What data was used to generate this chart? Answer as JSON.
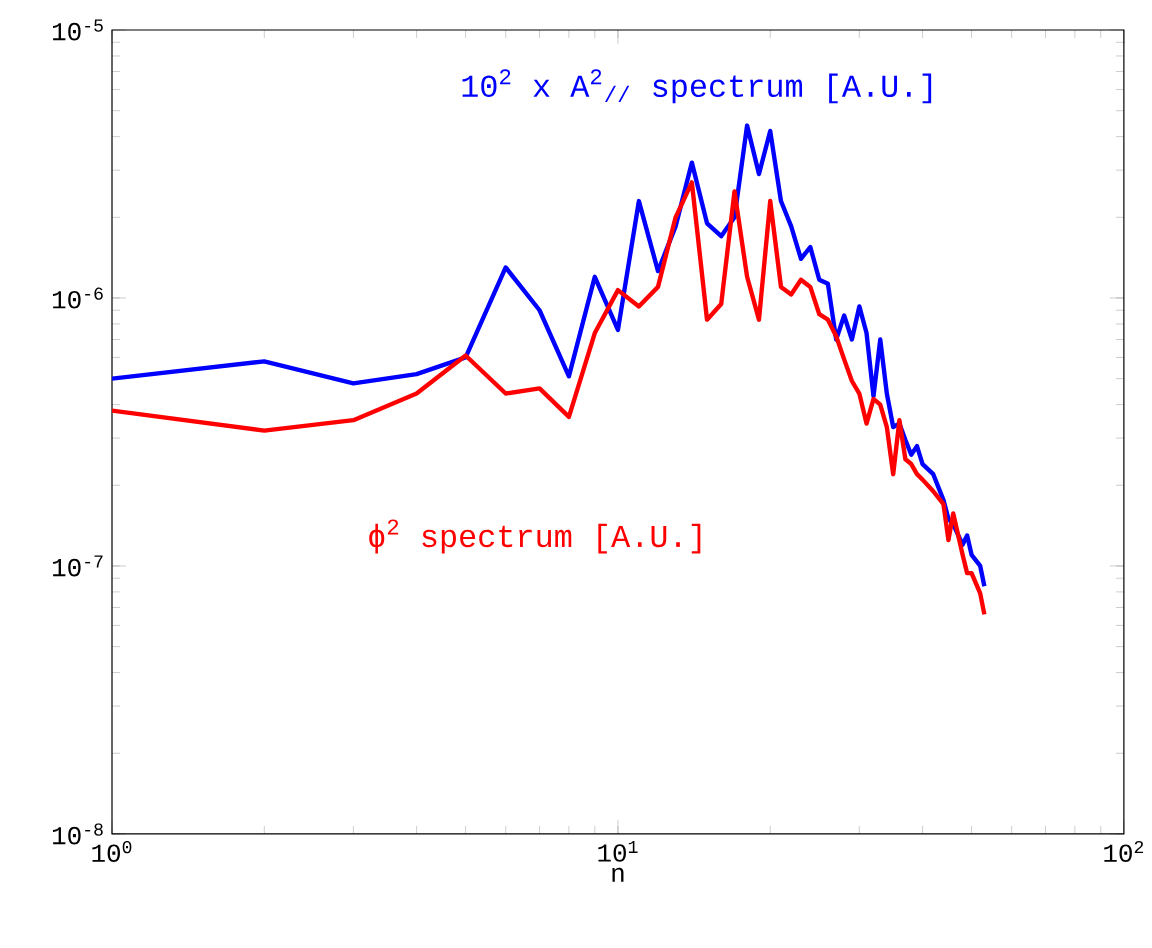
{
  "chart_data": {
    "type": "line",
    "xlabel": "n",
    "log": "xy",
    "xlim": [
      1,
      100
    ],
    "ylim": [
      1e-08,
      1e-05
    ],
    "xticks": [
      {
        "value": 1,
        "label": "10$^{0}$"
      },
      {
        "value": 10,
        "label": "10$^{1}$"
      },
      {
        "value": 100,
        "label": "10$^{2}$"
      }
    ],
    "yticks": [
      {
        "value": 1e-08,
        "label": "10$^{-8}$"
      },
      {
        "value": 1e-07,
        "label": "10$^{-7}$"
      },
      {
        "value": 1e-06,
        "label": "10$^{-6}$"
      },
      {
        "value": 1e-05,
        "label": "10$^{-5}$"
      }
    ],
    "grid": false,
    "legend": false,
    "marker": "none",
    "line_style": "solid",
    "x": [
      1,
      2,
      3,
      4,
      5,
      6,
      7,
      8,
      9,
      10,
      11,
      12,
      13,
      14,
      15,
      16,
      17,
      18,
      19,
      20,
      21,
      22,
      23,
      24,
      25,
      26,
      27,
      28,
      29,
      30,
      31,
      32,
      33,
      34,
      35,
      36,
      37,
      38,
      39,
      40,
      42,
      44,
      45,
      46,
      48,
      49,
      50,
      52,
      53
    ],
    "series": [
      {
        "name": "10$^{2}$ x A$^{2}$$_{//}$ spectrum [A.U.]",
        "color": "#0000ff",
        "values": [
          5e-07,
          5.8e-07,
          4.8e-07,
          5.2e-07,
          6e-07,
          1.3e-06,
          9e-07,
          5.1e-07,
          1.2e-06,
          7.6e-07,
          2.3e-06,
          1.26e-06,
          1.85e-06,
          3.2e-06,
          1.9e-06,
          1.7e-06,
          2e-06,
          4.4e-06,
          2.9e-06,
          4.2e-06,
          2.3e-06,
          1.85e-06,
          1.4e-06,
          1.55e-06,
          1.17e-06,
          1.13e-06,
          7e-07,
          8.6e-07,
          7e-07,
          9.3e-07,
          7.4e-07,
          4.3e-07,
          7e-07,
          4.4e-07,
          3.3e-07,
          3.4e-07,
          2.95e-07,
          2.6e-07,
          2.8e-07,
          2.4e-07,
          2.2e-07,
          1.76e-07,
          1.5e-07,
          1.43e-07,
          1.2e-07,
          1.3e-07,
          1.1e-07,
          1e-07,
          8.4e-08
        ]
      },
      {
        "name": "ϕ$^{2}$ spectrum [A.U.]",
        "color": "#ff0000",
        "values": [
          3.8e-07,
          3.2e-07,
          3.5e-07,
          4.4e-07,
          6.1e-07,
          4.4e-07,
          4.6e-07,
          3.6e-07,
          7.4e-07,
          1.07e-06,
          9.3e-07,
          1.1e-06,
          2e-06,
          2.7e-06,
          8.3e-07,
          9.5e-07,
          2.5e-06,
          1.2e-06,
          8.3e-07,
          2.3e-06,
          1.1e-06,
          1.03e-06,
          1.17e-06,
          1.1e-06,
          8.7e-07,
          8.3e-07,
          7.2e-07,
          5.9e-07,
          4.9e-07,
          4.4e-07,
          3.4e-07,
          4.2e-07,
          4e-07,
          3.3e-07,
          2.2e-07,
          3.5e-07,
          2.5e-07,
          2.4e-07,
          2.2e-07,
          2.1e-07,
          1.9e-07,
          1.7e-07,
          1.25e-07,
          1.57e-07,
          1.1e-07,
          9.4e-08,
          9.4e-08,
          7.9e-08,
          6.6e-08
        ]
      }
    ]
  }
}
